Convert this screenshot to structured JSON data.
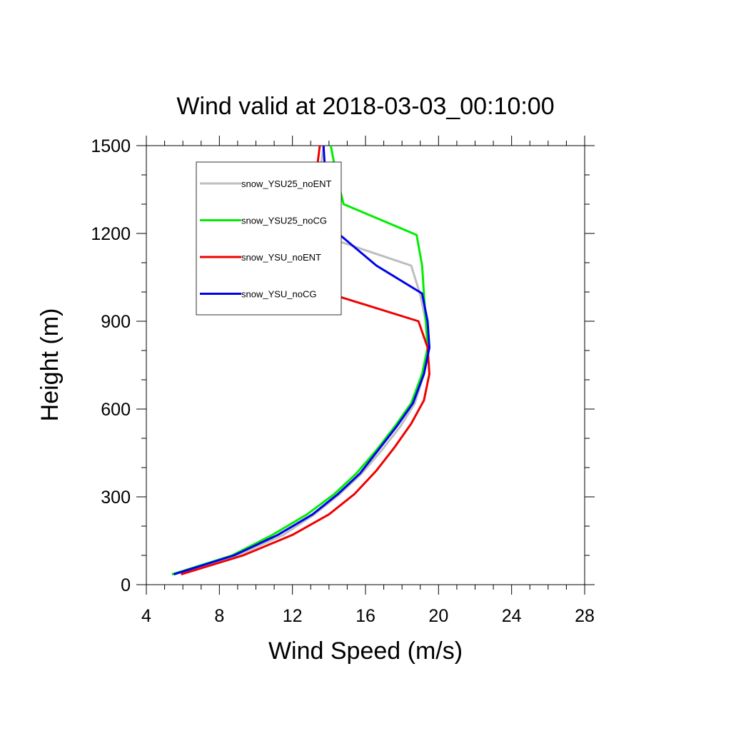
{
  "chart_data": {
    "type": "line",
    "title": "Wind valid at 2018-03-03_00:10:00",
    "xlabel": "Wind Speed (m/s)",
    "ylabel": "Height (m)",
    "xlim": [
      4,
      28
    ],
    "ylim": [
      0,
      1500
    ],
    "x_ticks": [
      4,
      8,
      12,
      16,
      20,
      24,
      28
    ],
    "y_ticks": [
      0,
      300,
      600,
      900,
      1200,
      1500
    ],
    "grid": false,
    "legend_position": "top-left inside",
    "series": [
      {
        "name": "snow_YSU25_noENT",
        "color": "#bebebe",
        "points": [
          [
            5.5,
            35
          ],
          [
            9.0,
            100
          ],
          [
            11.5,
            170
          ],
          [
            13.2,
            240
          ],
          [
            14.6,
            310
          ],
          [
            15.8,
            380
          ],
          [
            16.9,
            460
          ],
          [
            17.9,
            540
          ],
          [
            18.7,
            620
          ],
          [
            19.2,
            720
          ],
          [
            19.5,
            810
          ],
          [
            19.3,
            900
          ],
          [
            19.0,
            990
          ],
          [
            18.5,
            1090
          ],
          [
            13.5,
            1195
          ],
          [
            13.3,
            1300
          ],
          [
            13.7,
            1500
          ]
        ]
      },
      {
        "name": "snow_YSU25_noCG",
        "color": "#00ee00",
        "points": [
          [
            5.4,
            35
          ],
          [
            8.7,
            100
          ],
          [
            10.9,
            170
          ],
          [
            12.8,
            240
          ],
          [
            14.3,
            310
          ],
          [
            15.5,
            380
          ],
          [
            16.6,
            460
          ],
          [
            17.6,
            540
          ],
          [
            18.5,
            620
          ],
          [
            19.1,
            720
          ],
          [
            19.4,
            810
          ],
          [
            19.3,
            900
          ],
          [
            19.1,
            1090
          ],
          [
            18.8,
            1195
          ],
          [
            14.8,
            1300
          ],
          [
            14.4,
            1400
          ],
          [
            14.1,
            1500
          ]
        ]
      },
      {
        "name": "snow_YSU_noENT",
        "color": "#ee0000",
        "points": [
          [
            5.9,
            35
          ],
          [
            9.3,
            100
          ],
          [
            12.0,
            170
          ],
          [
            14.0,
            240
          ],
          [
            15.4,
            310
          ],
          [
            16.6,
            390
          ],
          [
            17.6,
            470
          ],
          [
            18.5,
            550
          ],
          [
            19.2,
            630
          ],
          [
            19.5,
            720
          ],
          [
            19.4,
            810
          ],
          [
            18.9,
            900
          ],
          [
            14.0,
            995
          ],
          [
            13.4,
            1090
          ],
          [
            13.0,
            1195
          ],
          [
            13.1,
            1300
          ],
          [
            13.5,
            1500
          ]
        ]
      },
      {
        "name": "snow_YSU_noCG",
        "color": "#0000ee",
        "points": [
          [
            5.5,
            35
          ],
          [
            8.8,
            100
          ],
          [
            11.2,
            170
          ],
          [
            13.1,
            240
          ],
          [
            14.5,
            310
          ],
          [
            15.7,
            380
          ],
          [
            16.7,
            460
          ],
          [
            17.7,
            540
          ],
          [
            18.6,
            620
          ],
          [
            19.2,
            720
          ],
          [
            19.5,
            810
          ],
          [
            19.4,
            900
          ],
          [
            19.1,
            995
          ],
          [
            16.6,
            1090
          ],
          [
            14.6,
            1195
          ],
          [
            14.1,
            1300
          ],
          [
            13.8,
            1400
          ],
          [
            13.7,
            1500
          ]
        ]
      }
    ]
  }
}
